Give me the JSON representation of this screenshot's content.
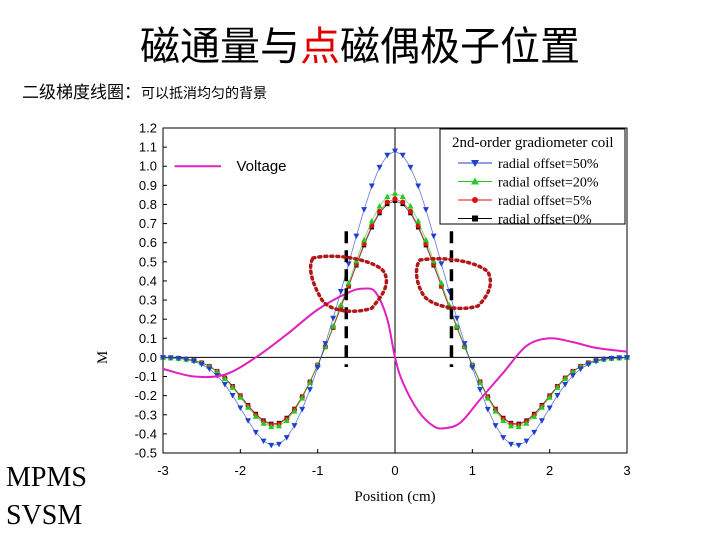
{
  "slide": {
    "title_part1": "磁通量与",
    "title_highlight": "点",
    "title_part2": "磁偶极子位置",
    "subtitle_main": "二级梯度线圈：",
    "subtitle_note": "可以抵消均匀的背景",
    "side_label_1": "MPMS",
    "side_label_2": "SVSM",
    "highlight_color": "#e00000"
  },
  "chart_data": {
    "type": "line",
    "title": "",
    "xlabel": "Position (cm)",
    "ylabel": "M",
    "xlim": [
      -3,
      3
    ],
    "ylim": [
      -0.5,
      1.2
    ],
    "x_ticks": [
      "-3",
      "-2",
      "-1",
      "0",
      "1",
      "2",
      "3"
    ],
    "y_ticks": [
      "1.2",
      "1.1",
      "1.0",
      "0.9",
      "0.8",
      "0.7",
      "0.6",
      "0.5",
      "0.4",
      "0.3",
      "0.2",
      "0.1",
      "0.0",
      "-0.1",
      "-0.2",
      "-0.3",
      "-0.4",
      "-0.5"
    ],
    "legend_title": "2nd-order gradiometer coil",
    "legend_position": "top-right",
    "grid": false,
    "series": [
      {
        "name": "radial offset=50%",
        "marker": "triangle-down",
        "color": "#1f3fcf",
        "amplitude": 1.08,
        "min": -0.47
      },
      {
        "name": "radial offset=20%",
        "marker": "triangle-up",
        "color": "#22cc22",
        "amplitude": 0.86,
        "min": -0.37
      },
      {
        "name": "radial offset=5%",
        "marker": "circle",
        "color": "#e01010",
        "amplitude": 0.83,
        "min": -0.36
      },
      {
        "name": "radial offset=0%",
        "marker": "square",
        "color": "#000000",
        "amplitude": 0.82,
        "min": -0.355
      }
    ],
    "voltage_series": {
      "label": "Voltage",
      "color": "#e020c0",
      "points": [
        [
          -3,
          -0.06
        ],
        [
          -2.6,
          -0.1
        ],
        [
          -2.2,
          -0.09
        ],
        [
          -1.8,
          0.0
        ],
        [
          -1.4,
          0.12
        ],
        [
          -1.0,
          0.25
        ],
        [
          -0.6,
          0.34
        ],
        [
          -0.4,
          0.36
        ],
        [
          -0.25,
          0.34
        ],
        [
          -0.1,
          0.2
        ],
        [
          0,
          0.0
        ],
        [
          0.1,
          -0.13
        ],
        [
          0.3,
          -0.28
        ],
        [
          0.5,
          -0.36
        ],
        [
          0.65,
          -0.37
        ],
        [
          0.85,
          -0.34
        ],
        [
          1.1,
          -0.22
        ],
        [
          1.4,
          -0.08
        ],
        [
          1.7,
          0.06
        ],
        [
          2.0,
          0.1
        ],
        [
          2.3,
          0.08
        ],
        [
          2.6,
          0.05
        ],
        [
          3.0,
          0.03
        ]
      ]
    },
    "annotations": {
      "dashed_line_color": "#000000",
      "dashed_lines_x": [
        -0.63,
        0.73
      ],
      "dotted_loop_color": "#b01818"
    }
  }
}
